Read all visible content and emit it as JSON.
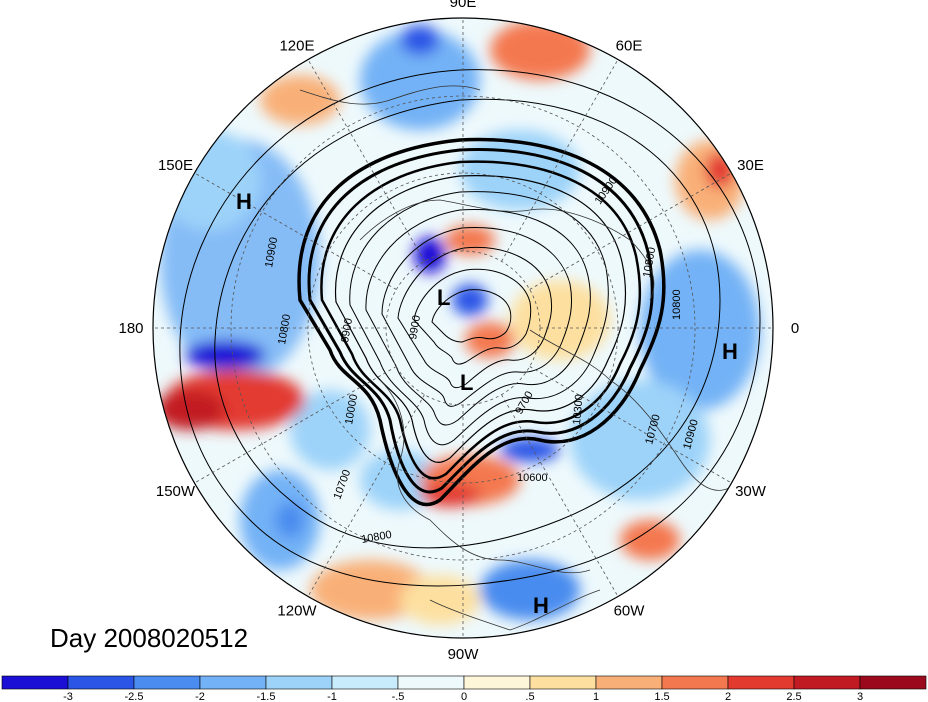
{
  "title": "Day 2008020512",
  "longitude_labels": [
    {
      "text": "90E",
      "angle": 90
    },
    {
      "text": "60E",
      "angle": 60
    },
    {
      "text": "30E",
      "angle": 30
    },
    {
      "text": "0",
      "angle": 0
    },
    {
      "text": "30W",
      "angle": -30
    },
    {
      "text": "60W",
      "angle": -60
    },
    {
      "text": "90W",
      "angle": -90
    },
    {
      "text": "120W",
      "angle": -120
    },
    {
      "text": "150W",
      "angle": -150
    },
    {
      "text": "180",
      "angle": 180
    },
    {
      "text": "150E",
      "angle": 150
    },
    {
      "text": "120E",
      "angle": 120
    }
  ],
  "pressure_centers": [
    {
      "type": "H",
      "id": "h-pacific-west"
    },
    {
      "type": "L",
      "id": "l-siberia"
    },
    {
      "type": "L",
      "id": "l-pole"
    },
    {
      "type": "H",
      "id": "h-atlantic-east"
    },
    {
      "type": "H",
      "id": "h-south-america"
    }
  ],
  "contour_labels": [
    {
      "text": "10900",
      "id": "c-10900-a"
    },
    {
      "text": "10800",
      "id": "c-10800-a"
    },
    {
      "text": "9900",
      "id": "c-9900-a"
    },
    {
      "text": "9900",
      "id": "c-9900-b"
    },
    {
      "text": "10000",
      "id": "c-10000-a"
    },
    {
      "text": "10700",
      "id": "c-10700-a"
    },
    {
      "text": "10800",
      "id": "c-10800-b"
    },
    {
      "text": "10600",
      "id": "c-10600-a"
    },
    {
      "text": "9700",
      "id": "c-9700-a"
    },
    {
      "text": "10300",
      "id": "c-10300-a"
    },
    {
      "text": "10700",
      "id": "c-10700-b"
    },
    {
      "text": "10900",
      "id": "c-10900-b"
    },
    {
      "text": "10800",
      "id": "c-10800-c"
    },
    {
      "text": "10800",
      "id": "c-10800-d"
    },
    {
      "text": "10900",
      "id": "c-10900-c"
    }
  ],
  "colorbar": {
    "labels": [
      "-3",
      "-2.5",
      "-2",
      "-1.5",
      "-1",
      "-.5",
      "0",
      ".5",
      "1",
      "1.5",
      "2",
      "2.5",
      "3"
    ],
    "colors": [
      "#1b0fd6",
      "#2a55e6",
      "#4a8cef",
      "#73b2f6",
      "#9dd3f9",
      "#c8ecfb",
      "#eef9fc",
      "#fdf6d8",
      "#fde0a0",
      "#f9b078",
      "#f4784f",
      "#e33a30",
      "#c21a22",
      "#9b0a1c"
    ]
  },
  "colors": {
    "ocean_bg": "#eef9fc",
    "contour": "#000000",
    "graticule": "#555555"
  }
}
